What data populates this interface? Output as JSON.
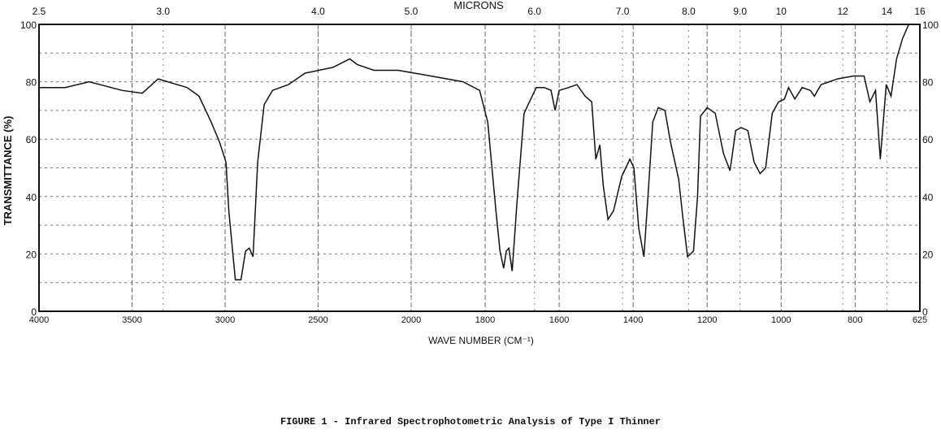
{
  "chart_data": {
    "type": "line",
    "caption": "FIGURE 1  -  Infrared Spectrophotometric Analysis of Type I Thinner",
    "xlabel": "WAVE NUMBER (CM⁻¹)",
    "x2label": "MICRONS",
    "ylabel": "TRANSMITTANCE (%)",
    "xlim": [
      4000,
      625
    ],
    "ylim": [
      0,
      100
    ],
    "grid": true,
    "x_ticks": [
      4000,
      3500,
      3000,
      2500,
      2000,
      1800,
      1600,
      1400,
      1200,
      1000,
      800,
      625
    ],
    "x_tick_labels": [
      "4000",
      "3500",
      "3000",
      "2500",
      "2000",
      "1800",
      "1600",
      "1400",
      "1200",
      "1000",
      "800",
      "625"
    ],
    "micron_ticks": [
      2.5,
      3.0,
      4.0,
      5.0,
      6.0,
      7.0,
      8.0,
      9.0,
      10,
      12,
      14,
      16
    ],
    "micron_tick_labels": [
      "2.5",
      "3.0",
      "4.0",
      "5.0",
      "6.0",
      "7.0",
      "8.0",
      "9.0",
      "10",
      "12",
      "14",
      "16"
    ],
    "y_ticks": [
      0,
      20,
      40,
      60,
      80,
      100
    ],
    "y_tick_labels": [
      "0",
      "20",
      "40",
      "60",
      "80",
      "100"
    ],
    "line_color": "#111111",
    "series": [
      {
        "x": [
          4000,
          3860,
          3730,
          3555,
          3445,
          3360,
          3205,
          3140,
          3075,
          3030,
          2995,
          2980,
          2945,
          2915,
          2890,
          2870,
          2850,
          2825,
          2790,
          2745,
          2660,
          2570,
          2420,
          2330,
          2290,
          2200,
          2070,
          1947,
          1860,
          1815,
          1793,
          1771,
          1760,
          1750,
          1743,
          1736,
          1727,
          1714,
          1695,
          1662,
          1640,
          1622,
          1611,
          1600,
          1574,
          1552,
          1530,
          1512,
          1501,
          1490,
          1481,
          1468,
          1453,
          1431,
          1409,
          1398,
          1385,
          1371,
          1360,
          1347,
          1332,
          1314,
          1299,
          1277,
          1266,
          1253,
          1237,
          1226,
          1218,
          1200,
          1178,
          1156,
          1138,
          1123,
          1108,
          1090,
          1073,
          1057,
          1042,
          1024,
          1007,
          991,
          980,
          963,
          943,
          921,
          910,
          892,
          848,
          804,
          776,
          760,
          745,
          732,
          716,
          703,
          688,
          672,
          655,
          640
        ],
        "y": [
          78,
          78,
          80,
          77,
          76,
          81,
          78,
          75,
          66,
          59,
          52,
          35,
          11,
          11,
          21,
          22,
          19,
          52,
          72,
          77,
          79,
          83,
          85,
          88,
          86,
          84,
          84,
          82,
          80,
          77,
          66,
          35,
          21,
          15,
          21,
          22,
          14,
          38,
          69,
          78,
          78,
          77,
          70,
          77,
          78,
          79,
          75,
          73,
          53,
          58,
          44,
          32,
          35,
          47,
          53,
          50,
          29,
          19,
          40,
          66,
          71,
          70,
          59,
          46,
          33,
          19,
          21,
          40,
          68,
          71,
          69,
          55,
          49,
          63,
          64,
          63,
          52,
          48,
          50,
          69,
          73,
          74,
          78,
          74,
          78,
          77,
          75,
          79,
          81,
          82,
          82,
          73,
          77,
          53,
          79,
          75,
          88,
          95,
          100,
          100
        ]
      }
    ]
  }
}
